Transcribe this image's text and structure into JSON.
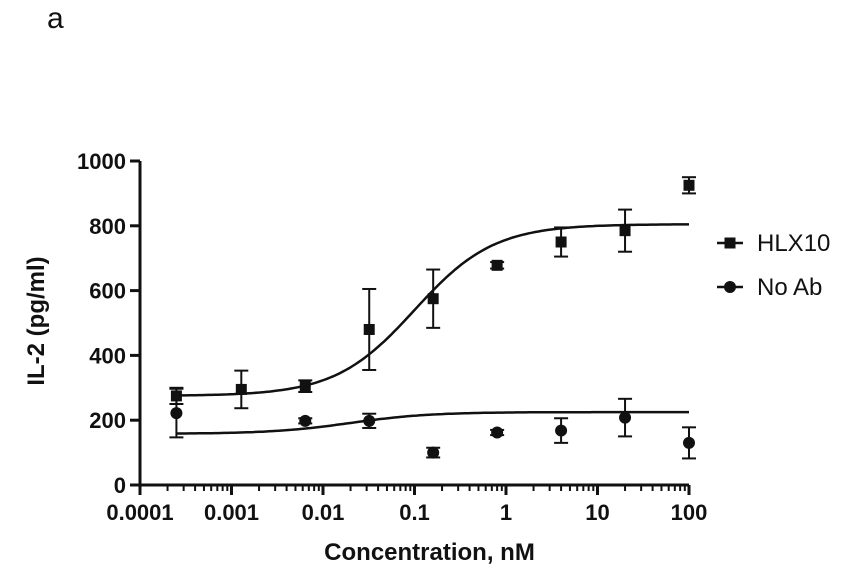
{
  "panel_label": "a",
  "chart_data": {
    "type": "scatter",
    "title": "",
    "xlabel": "Concentration, nM",
    "ylabel": "IL-2 (pg/ml)",
    "xscale": "log",
    "xlim": [
      0.0001,
      100
    ],
    "ylim": [
      0,
      1000
    ],
    "x_ticks": [
      0.0001,
      0.001,
      0.01,
      0.1,
      1,
      10,
      100
    ],
    "x_tick_labels": [
      "0.0001",
      "0.001",
      "0.01",
      "0.1",
      "1",
      "10",
      "100"
    ],
    "y_ticks": [
      0,
      200,
      400,
      600,
      800,
      1000
    ],
    "y_tick_labels": [
      "0",
      "200",
      "400",
      "600",
      "800",
      "1000"
    ],
    "grid": false,
    "legend_position": "right",
    "series": [
      {
        "name": "HLX10",
        "marker": "square",
        "x": [
          0.00025,
          0.00128,
          0.0064,
          0.032,
          0.16,
          0.8,
          4,
          20,
          100
        ],
        "y": [
          275,
          295,
          305,
          480,
          575,
          678,
          750,
          785,
          925
        ],
        "err": [
          25,
          58,
          18,
          125,
          90,
          10,
          45,
          65,
          25
        ],
        "fit": {
          "bottom": 275,
          "top": 805,
          "ec50": 0.1,
          "hill": 1.0
        }
      },
      {
        "name": "No Ab",
        "marker": "circle",
        "x": [
          0.00025,
          0.00128,
          0.0064,
          0.032,
          0.16,
          0.8,
          4,
          20,
          100
        ],
        "y": [
          222,
          null,
          198,
          198,
          100,
          162,
          168,
          208,
          130
        ],
        "err": [
          75,
          null,
          8,
          22,
          15,
          8,
          38,
          58,
          48
        ],
        "fit": {
          "bottom": 158,
          "top": 225,
          "ec50": 0.02,
          "hill": 1.0
        }
      }
    ]
  }
}
